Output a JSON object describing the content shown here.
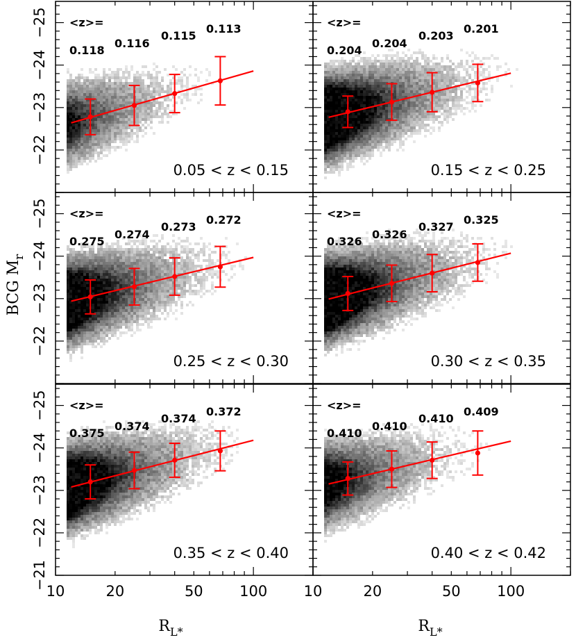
{
  "figure": {
    "ylabel_main": "BCG M",
    "ylabel_sub": "r",
    "xlabel_main": "R",
    "xlabel_sub": "L*"
  },
  "chart_data": [
    {
      "type": "scatter",
      "row": 0,
      "col": 0,
      "density_scale": 0.45,
      "range_label": "0.05 < z < 0.15",
      "mean_z_label": "<z>=",
      "mean_z": [
        "0.118",
        "0.116",
        "0.115",
        "0.113"
      ],
      "points": [
        {
          "x": 15,
          "y": -22.78,
          "err": 0.42
        },
        {
          "x": 25,
          "y": -23.05,
          "err": 0.47
        },
        {
          "x": 40,
          "y": -23.33,
          "err": 0.45
        },
        {
          "x": 68,
          "y": -23.63,
          "err": 0.57
        }
      ],
      "fit": {
        "x": [
          12,
          100
        ],
        "y": [
          -22.64,
          -23.86
        ]
      },
      "xlim": [
        10,
        200
      ],
      "ylim": [
        -21,
        -25.5
      ],
      "xscale": "log"
    },
    {
      "type": "scatter",
      "row": 0,
      "col": 1,
      "density_scale": 1.0,
      "range_label": "0.15 < z < 0.25",
      "mean_z_label": "<z>=",
      "mean_z": [
        "0.204",
        "0.204",
        "0.203",
        "0.201"
      ],
      "points": [
        {
          "x": 15,
          "y": -22.9,
          "err": 0.37
        },
        {
          "x": 25,
          "y": -23.13,
          "err": 0.43
        },
        {
          "x": 40,
          "y": -23.36,
          "err": 0.46
        },
        {
          "x": 68,
          "y": -23.58,
          "err": 0.44
        }
      ],
      "fit": {
        "x": [
          12,
          100
        ],
        "y": [
          -22.77,
          -23.81
        ]
      },
      "xlim": [
        10,
        200
      ],
      "ylim": [
        -21,
        -25.5
      ],
      "xscale": "log"
    },
    {
      "type": "scatter",
      "row": 1,
      "col": 0,
      "density_scale": 0.85,
      "range_label": "0.25 < z < 0.30",
      "mean_z_label": "<z>=",
      "mean_z": [
        "0.275",
        "0.274",
        "0.273",
        "0.272"
      ],
      "points": [
        {
          "x": 15,
          "y": -23.04,
          "err": 0.4
        },
        {
          "x": 25,
          "y": -23.28,
          "err": 0.43
        },
        {
          "x": 40,
          "y": -23.52,
          "err": 0.44
        },
        {
          "x": 68,
          "y": -23.75,
          "err": 0.48
        }
      ],
      "fit": {
        "x": [
          12,
          100
        ],
        "y": [
          -22.94,
          -23.97
        ]
      },
      "xlim": [
        10,
        200
      ],
      "ylim": [
        -21,
        -25.5
      ],
      "xscale": "log"
    },
    {
      "type": "scatter",
      "row": 1,
      "col": 1,
      "density_scale": 1.0,
      "range_label": "0.30 < z < 0.35",
      "mean_z_label": "<z>=",
      "mean_z": [
        "0.326",
        "0.326",
        "0.327",
        "0.325"
      ],
      "points": [
        {
          "x": 15,
          "y": -23.12,
          "err": 0.4
        },
        {
          "x": 25,
          "y": -23.36,
          "err": 0.43
        },
        {
          "x": 40,
          "y": -23.6,
          "err": 0.44
        },
        {
          "x": 68,
          "y": -23.85,
          "err": 0.44
        }
      ],
      "fit": {
        "x": [
          12,
          100
        ],
        "y": [
          -22.99,
          -24.07
        ]
      },
      "xlim": [
        10,
        200
      ],
      "ylim": [
        -21,
        -25.5
      ],
      "xscale": "log"
    },
    {
      "type": "scatter",
      "row": 2,
      "col": 0,
      "density_scale": 0.9,
      "range_label": "0.35 < z < 0.40",
      "mean_z_label": "<z>=",
      "mean_z": [
        "0.375",
        "0.374",
        "0.374",
        "0.372"
      ],
      "points": [
        {
          "x": 15,
          "y": -23.2,
          "err": 0.4
        },
        {
          "x": 25,
          "y": -23.47,
          "err": 0.43
        },
        {
          "x": 40,
          "y": -23.71,
          "err": 0.4
        },
        {
          "x": 68,
          "y": -23.93,
          "err": 0.47
        }
      ],
      "fit": {
        "x": [
          12,
          100
        ],
        "y": [
          -23.08,
          -24.18
        ]
      },
      "xlim": [
        10,
        200
      ],
      "ylim": [
        -21,
        -25.5
      ],
      "xscale": "log"
    },
    {
      "type": "scatter",
      "row": 2,
      "col": 1,
      "density_scale": 0.6,
      "range_label": "0.40 < z < 0.42",
      "mean_z_label": "<z>=",
      "mean_z": [
        "0.410",
        "0.410",
        "0.410",
        "0.409"
      ],
      "points": [
        {
          "x": 15,
          "y": -23.28,
          "err": 0.39
        },
        {
          "x": 25,
          "y": -23.5,
          "err": 0.43
        },
        {
          "x": 40,
          "y": -23.71,
          "err": 0.43
        },
        {
          "x": 68,
          "y": -23.88,
          "err": 0.52
        }
      ],
      "fit": {
        "x": [
          12,
          100
        ],
        "y": [
          -23.15,
          -24.16
        ]
      },
      "xlim": [
        10,
        200
      ],
      "ylim": [
        -21,
        -25.5
      ],
      "xscale": "log"
    }
  ],
  "axes": {
    "x_ticks": [
      {
        "value": 10,
        "label": "10"
      },
      {
        "value": 20,
        "label": "20"
      },
      {
        "value": 50,
        "label": "50"
      },
      {
        "value": 100,
        "label": "100"
      }
    ],
    "y_ticks_top": [
      {
        "value": -22,
        "label": "−22"
      },
      {
        "value": -23,
        "label": "−23"
      },
      {
        "value": -24,
        "label": "−24"
      },
      {
        "value": -25,
        "label": "−25"
      }
    ],
    "y_ticks_bottom": [
      {
        "value": -21,
        "label": "−21"
      },
      {
        "value": -22,
        "label": "−22"
      },
      {
        "value": -23,
        "label": "−23"
      },
      {
        "value": -24,
        "label": "−24"
      },
      {
        "value": -25,
        "label": "−25"
      }
    ]
  },
  "colors": {
    "fit": "#ff0000",
    "points": "#ff0000",
    "frame": "#000000"
  }
}
